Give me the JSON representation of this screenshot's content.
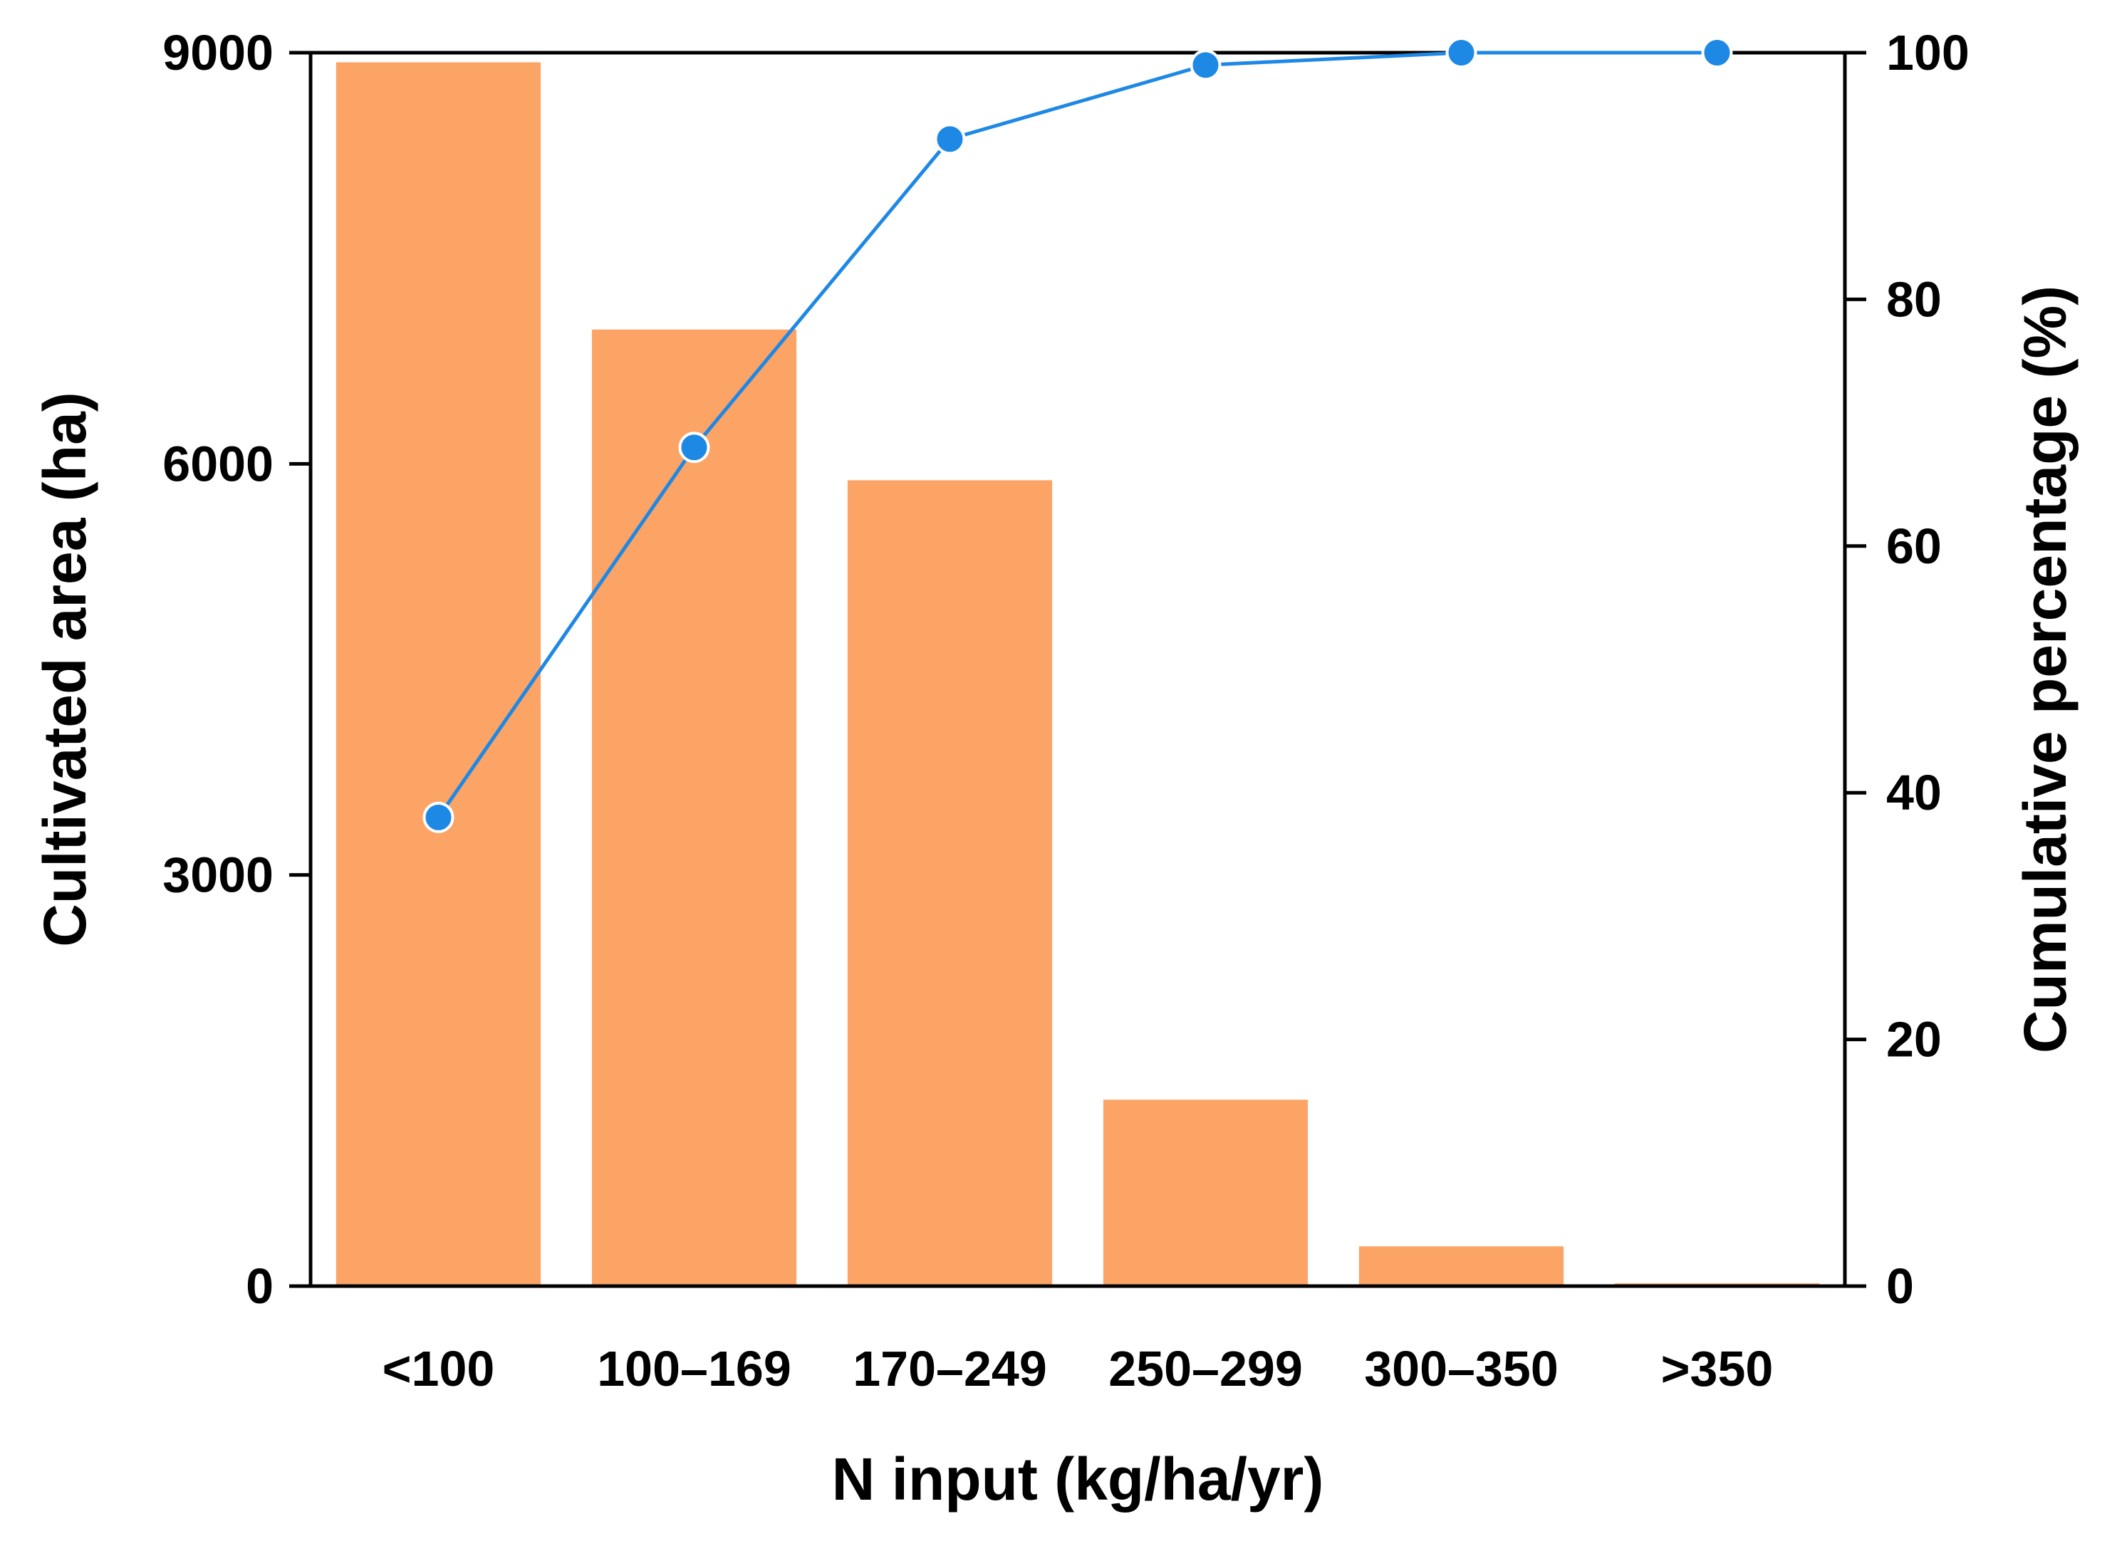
{
  "chart_data": {
    "type": "bar",
    "categories": [
      "<100",
      "100–169",
      "170–249",
      "250–299",
      "300–350",
      ">350"
    ],
    "series": [
      {
        "values": [
          8930,
          6980,
          5880,
          1360,
          290,
          20
        ],
        "axis": "left",
        "type": "bar",
        "color": "#FCA466"
      },
      {
        "values": [
          38,
          68,
          93,
          99,
          100,
          100
        ],
        "axis": "right",
        "type": "line",
        "color": "#1E88E5"
      }
    ],
    "xlabel": "N input (kg/ha/yr)",
    "ylabel": "Cultivated area (ha)",
    "y2label": "Cumulative percentage (%)",
    "ylim": [
      0,
      9000
    ],
    "y2lim": [
      0,
      100
    ],
    "yticks": [
      "0",
      "3000",
      "6000",
      "9000"
    ],
    "y2ticks": [
      "0",
      "20",
      "40",
      "60",
      "80",
      "100"
    ],
    "grid": false,
    "legend": "none"
  }
}
